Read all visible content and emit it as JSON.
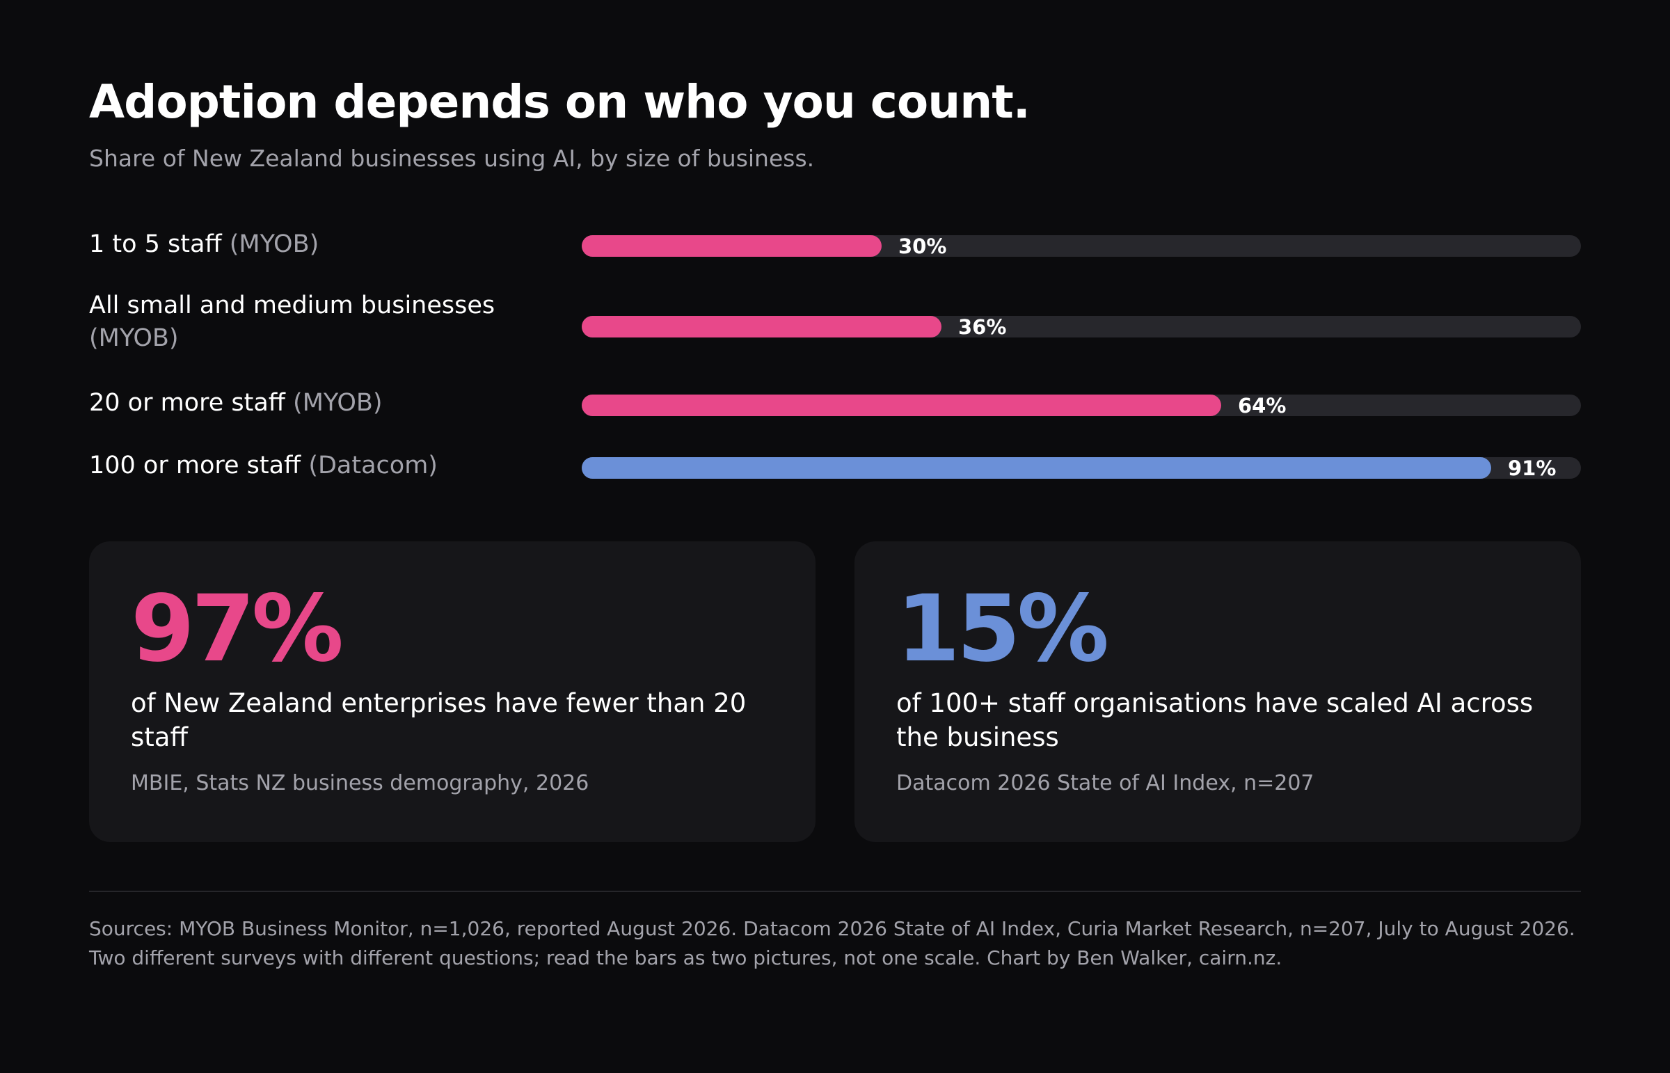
{
  "title": "Adoption depends on who you count.",
  "subtitle": "Share of New Zealand businesses using AI, by size of business.",
  "colors": {
    "background": "#0b0b0d",
    "myob_pink": "#e8488a",
    "datacom_blue": "#6b90d8",
    "track": "#27272c",
    "card": "#161619",
    "muted_text": "#a3a3ab"
  },
  "chart_data": {
    "type": "bar",
    "orientation": "horizontal",
    "xlim": [
      0,
      100
    ],
    "unit": "%",
    "categories": [
      "1 to 5 staff",
      "All small and medium businesses",
      "20 or more staff",
      "100 or more staff"
    ],
    "sources": [
      "(MYOB)",
      "(MYOB)",
      "(MYOB)",
      "(Datacom)"
    ],
    "values": [
      30,
      36,
      64,
      91
    ],
    "value_labels": [
      "30%",
      "36%",
      "64%",
      "91%"
    ],
    "bar_colors": [
      "#e8488a",
      "#e8488a",
      "#e8488a",
      "#6b90d8"
    ]
  },
  "cards": [
    {
      "stat": "97%",
      "text": "of New Zealand enterprises have fewer than 20 staff",
      "source": "MBIE, Stats NZ business demography, 2026",
      "color": "#e8488a"
    },
    {
      "stat": "15%",
      "text": "of 100+ staff organisations have scaled AI across the business",
      "source": "Datacom 2026 State of AI Index, n=207",
      "color": "#6b90d8"
    }
  ],
  "footnote": "Sources: MYOB Business Monitor, n=1,026, reported August 2026. Datacom 2026 State of AI Index, Curia Market Research, n=207, July to August 2026. Two different surveys with different questions; read the bars as two pictures, not one scale. Chart by Ben Walker, cairn.nz."
}
